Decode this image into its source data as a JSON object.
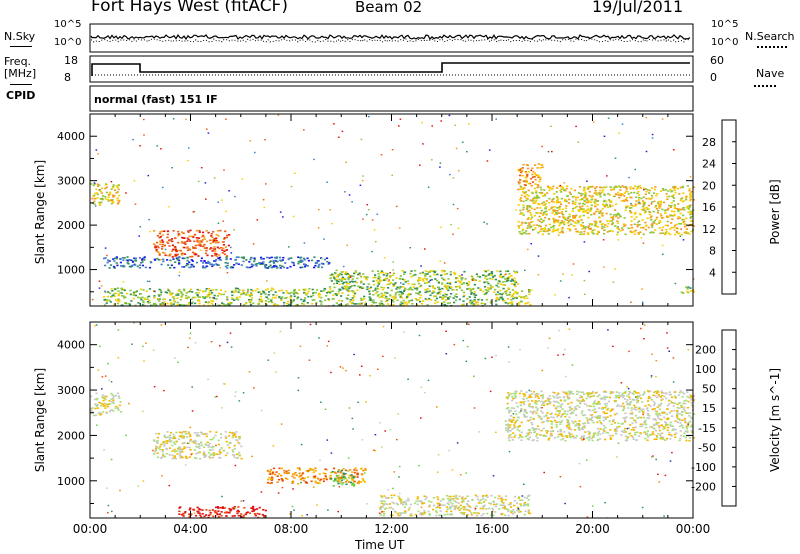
{
  "header": {
    "station": "Fort Hays West (fitACF)",
    "beam": "Beam 02",
    "date": "19/Jul/2011"
  },
  "strip_labels": {
    "nsky": "N.Sky",
    "nsky_ticks": [
      "10^5",
      "10^0"
    ],
    "nsearch": "N.Search",
    "nsearch_ticks": [
      "10^5",
      "10^0"
    ],
    "freq_line1": "Freq.",
    "freq_line2": "[MHz]",
    "freq_ticks": [
      "18",
      "8"
    ],
    "nave": "Nave",
    "nave_ticks": [
      "60",
      "0"
    ],
    "cpid": "CPID",
    "cpid_value": "normal (fast) 151 IF"
  },
  "time_axis": {
    "label": "Time UT",
    "ticks": [
      "00:00",
      "04:00",
      "08:00",
      "12:00",
      "16:00",
      "20:00",
      "00:00"
    ]
  },
  "chart_data": [
    {
      "type": "heatmap",
      "panel": "power",
      "ylabel": "Slant Range [km]",
      "yticks": [
        1000,
        2000,
        3000,
        4000
      ],
      "ylim": [
        180,
        4500
      ],
      "xlim": [
        0,
        24
      ],
      "colorbar": {
        "label": "Power [dB]",
        "ticks": [
          "4",
          "8",
          "12",
          "16",
          "20",
          "24",
          "28"
        ],
        "colors": [
          "#1a1ae6",
          "#3f7fc4",
          "#2f8f5a",
          "#8cc63f",
          "#f5d000",
          "#f59a1f",
          "#ee5a16",
          "#e01010"
        ]
      },
      "echo_regions": [
        {
          "t0": 0.0,
          "t1": 1.2,
          "r0": 2450,
          "r1": 2950,
          "level": 4
        },
        {
          "t0": 2.5,
          "t1": 5.5,
          "r0": 1300,
          "r1": 1900,
          "level": 6
        },
        {
          "t0": 0.5,
          "t1": 9.5,
          "r0": 1050,
          "r1": 1300,
          "level": 1
        },
        {
          "t0": 0.5,
          "t1": 17.5,
          "r0": 200,
          "r1": 600,
          "level": 3
        },
        {
          "t0": 9.5,
          "t1": 17.0,
          "r0": 600,
          "r1": 1000,
          "level": 3
        },
        {
          "t0": 17.0,
          "t1": 24.0,
          "r0": 1800,
          "r1": 2900,
          "level": 4
        },
        {
          "t0": 17.0,
          "t1": 18.0,
          "r0": 2900,
          "r1": 3400,
          "level": 5
        },
        {
          "t0": 23.5,
          "t1": 24.0,
          "r0": 450,
          "r1": 650,
          "level": 3
        }
      ]
    },
    {
      "type": "heatmap",
      "panel": "velocity",
      "ylabel": "Slant Range [km]",
      "yticks": [
        1000,
        2000,
        3000,
        4000
      ],
      "ylim": [
        180,
        4500
      ],
      "xlim": [
        0,
        24
      ],
      "colorbar": {
        "label": "Velocity [m s^-1]",
        "ticks": [
          "200",
          "100",
          "50",
          "15",
          "-15",
          "-50",
          "-100",
          "-200"
        ],
        "colors": [
          "#1a2ab0",
          "#2f8f5a",
          "#66cc33",
          "#a6e07a",
          "#c8c8c8",
          "#f5b800",
          "#f08c00",
          "#ee4a10",
          "#e01010"
        ]
      },
      "echo_regions": [
        {
          "t0": 0.0,
          "t1": 1.2,
          "r0": 2450,
          "r1": 2950,
          "level": 4
        },
        {
          "t0": 2.5,
          "t1": 6.0,
          "r0": 1500,
          "r1": 2100,
          "level": 4
        },
        {
          "t0": 3.5,
          "t1": 7.0,
          "r0": 200,
          "r1": 450,
          "level": 8
        },
        {
          "t0": 7.0,
          "t1": 11.0,
          "r0": 950,
          "r1": 1300,
          "level": 6
        },
        {
          "t0": 9.5,
          "t1": 10.5,
          "r0": 900,
          "r1": 1250,
          "level": 2
        },
        {
          "t0": 11.5,
          "t1": 17.5,
          "r0": 250,
          "r1": 700,
          "level": 4
        },
        {
          "t0": 16.5,
          "t1": 24.0,
          "r0": 1900,
          "r1": 3000,
          "level": 4
        }
      ]
    }
  ]
}
